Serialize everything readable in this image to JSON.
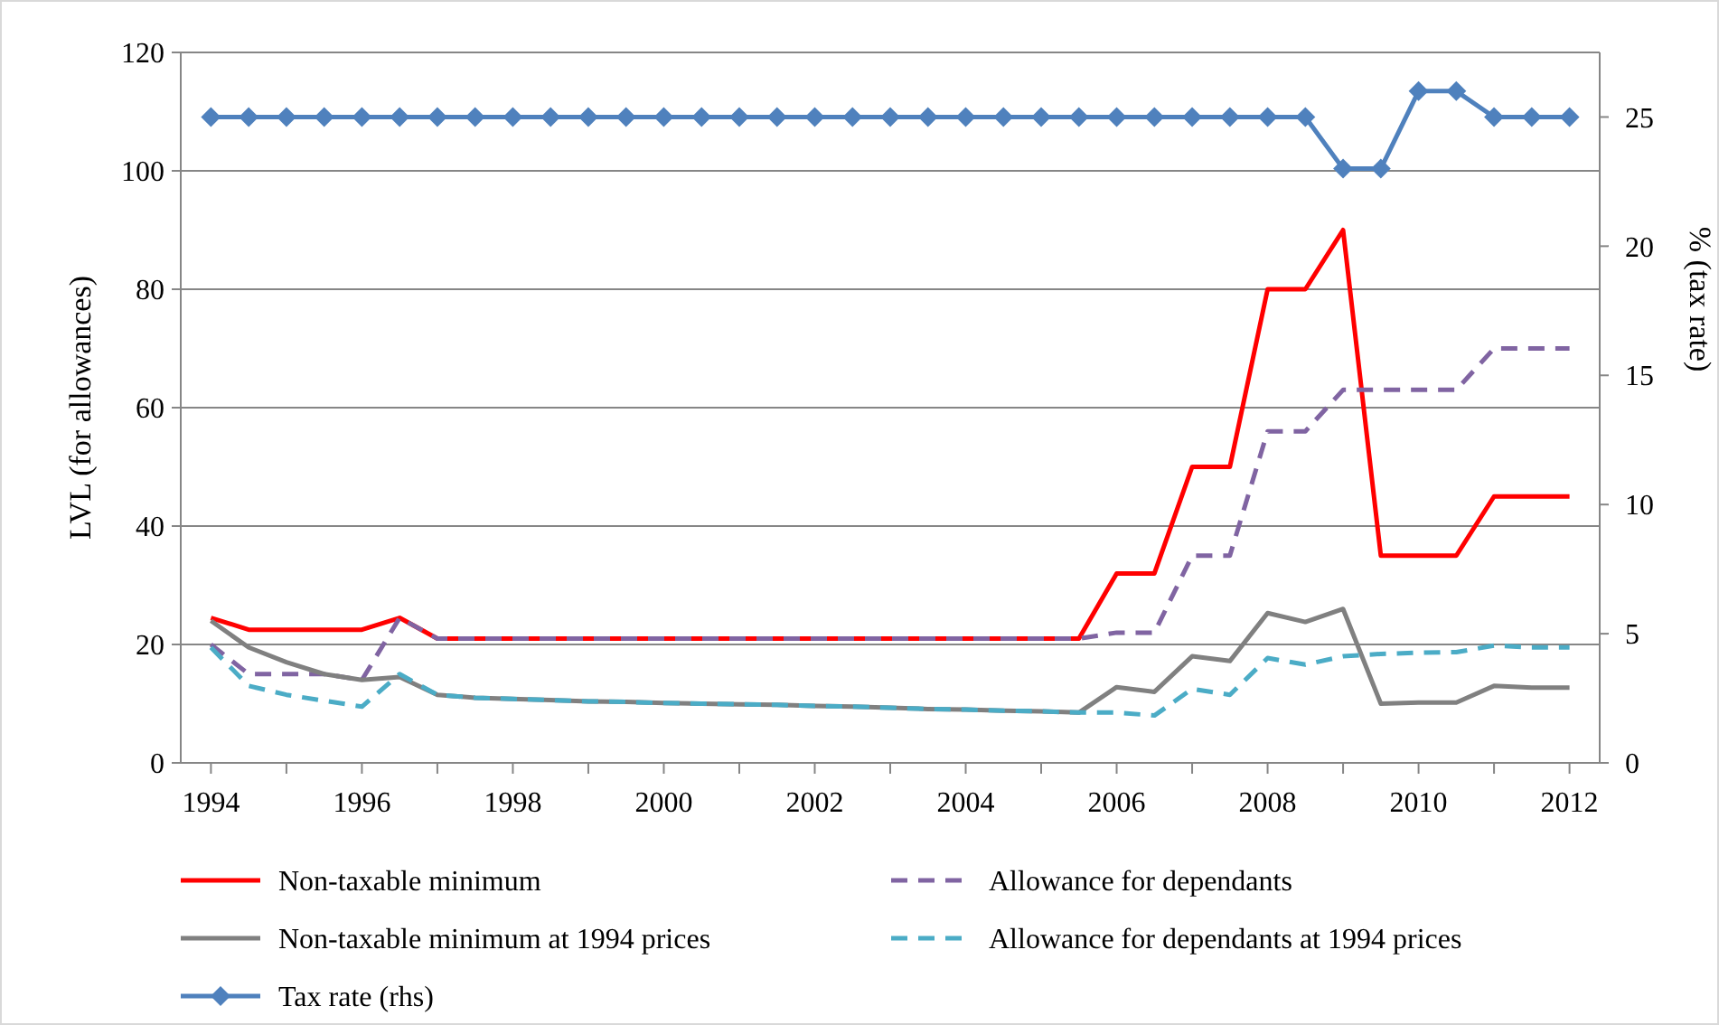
{
  "chart_data": {
    "type": "line",
    "ylabel": "LVL (for allowances)",
    "y2label": "% (tax rate)",
    "x": [
      1994,
      1994.5,
      1995,
      1995.5,
      1996,
      1996.5,
      1997,
      1997.5,
      1998,
      1998.5,
      1999,
      1999.5,
      2000,
      2000.5,
      2001,
      2001.5,
      2002,
      2002.5,
      2003,
      2003.5,
      2004,
      2004.5,
      2005,
      2005.5,
      2006,
      2006.5,
      2007,
      2007.5,
      2008,
      2008.5,
      2009,
      2009.5,
      2010,
      2010.5,
      2011,
      2011.5,
      2012
    ],
    "xlim": [
      1993.6,
      2012.4
    ],
    "xticks": [
      1994,
      {
        "value": 1995,
        "label": null
      },
      1996,
      {
        "value": 1997,
        "label": null
      },
      1998,
      {
        "value": 1999,
        "label": null
      },
      2000,
      {
        "value": 2001,
        "label": null
      },
      2002,
      {
        "value": 2003,
        "label": null
      },
      2004,
      {
        "value": 2005,
        "label": null
      },
      2006,
      {
        "value": 2007,
        "label": null
      },
      2008,
      {
        "value": 2009,
        "label": null
      },
      2010,
      {
        "value": 2011,
        "label": null
      },
      2012
    ],
    "ylim": [
      0,
      120
    ],
    "yticks": [
      0,
      20,
      40,
      60,
      80,
      100,
      120
    ],
    "y2lim": [
      0,
      27.5
    ],
    "y2ticks": [
      0,
      5,
      10,
      15,
      20,
      25
    ],
    "grid": "y",
    "legend": "bottom",
    "series": [
      {
        "name": "Non-taxable minimum",
        "color": "#ff0000",
        "line_style": "solid",
        "marker": "none",
        "values": [
          24.5,
          22.5,
          22.5,
          22.5,
          22.5,
          24.5,
          21,
          21,
          21,
          21,
          21,
          21,
          21,
          21,
          21,
          21,
          21,
          21,
          21,
          21,
          21,
          21,
          21,
          21,
          32,
          32,
          50,
          50,
          80,
          80,
          90,
          35,
          35,
          35,
          45,
          45,
          45
        ]
      },
      {
        "name": "Allowance for dependants",
        "color": "#8064a2",
        "line_style": "dashed",
        "marker": "none",
        "values": [
          20,
          15,
          15,
          15,
          14,
          24.5,
          21,
          21,
          21,
          21,
          21,
          21,
          21,
          21,
          21,
          21,
          21,
          21,
          21,
          21,
          21,
          21,
          21,
          21,
          22,
          22,
          35,
          35,
          56,
          56,
          63,
          63,
          63,
          63,
          70,
          70,
          70
        ]
      },
      {
        "name": "Non-taxable minimum at 1994 prices",
        "color": "#808080",
        "line_style": "solid",
        "marker": "none",
        "values": [
          24,
          19.5,
          17,
          15,
          14,
          14.5,
          11.5,
          11,
          10.8,
          10.6,
          10.4,
          10.3,
          10.1,
          10,
          9.9,
          9.8,
          9.6,
          9.5,
          9.3,
          9.1,
          9,
          8.8,
          8.7,
          8.5,
          12.8,
          12,
          18,
          17.2,
          25.3,
          23.8,
          26,
          10,
          10.2,
          10.2,
          13,
          12.7,
          12.7
        ]
      },
      {
        "name": "Allowance for dependants at 1994 prices",
        "color": "#4bacc6",
        "line_style": "dashed",
        "marker": "none",
        "values": [
          19.5,
          13,
          11.5,
          10.5,
          9.5,
          15,
          11.5,
          11,
          10.8,
          10.6,
          10.4,
          10.3,
          10.1,
          10,
          9.9,
          9.8,
          9.6,
          9.5,
          9.3,
          9.1,
          9,
          8.8,
          8.7,
          8.5,
          8.5,
          8,
          12.5,
          11.5,
          17.7,
          16.6,
          18,
          18.4,
          18.6,
          18.7,
          19.8,
          19.5,
          19.5
        ]
      },
      {
        "name": "Tax rate (rhs)",
        "color": "#4f81bd",
        "line_style": "solid",
        "marker": "diamond",
        "axis": "y2",
        "values": [
          25,
          25,
          25,
          25,
          25,
          25,
          25,
          25,
          25,
          25,
          25,
          25,
          25,
          25,
          25,
          25,
          25,
          25,
          25,
          25,
          25,
          25,
          25,
          25,
          25,
          25,
          25,
          25,
          25,
          25,
          23,
          23,
          26,
          26,
          25,
          25,
          25
        ]
      }
    ]
  }
}
